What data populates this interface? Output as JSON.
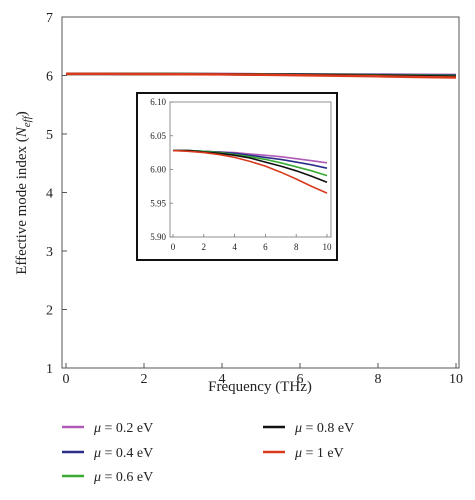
{
  "chart_data": {
    "type": "line",
    "xlabel": "Frequency (THz)",
    "ylabel": {
      "prefix": "Effective mode index (",
      "symbol": "N",
      "subscript": "eff",
      "suffix": ")"
    },
    "xlim": [
      0,
      10
    ],
    "ylim": [
      1,
      7
    ],
    "xticks": [
      "0",
      "2",
      "4",
      "6",
      "8",
      "10"
    ],
    "yticks": [
      "1",
      "2",
      "3",
      "4",
      "5",
      "6",
      "7"
    ],
    "grid": false,
    "legend_position": "bottom",
    "series": [
      {
        "name": "μ = 0.2 eV",
        "symbol": "μ",
        "value_text": "= 0.2 eV",
        "color": "#b05ab8",
        "x": [
          0,
          1,
          2,
          3,
          4,
          5,
          6,
          7,
          8,
          9,
          10
        ],
        "y": [
          6.028,
          6.028,
          6.027,
          6.026,
          6.025,
          6.023,
          6.021,
          6.019,
          6.016,
          6.013,
          6.01
        ]
      },
      {
        "name": "μ = 0.4 eV",
        "symbol": "μ",
        "value_text": "= 0.4 eV",
        "color": "#2b2f8a",
        "x": [
          0,
          1,
          2,
          3,
          4,
          5,
          6,
          7,
          8,
          9,
          10
        ],
        "y": [
          6.028,
          6.028,
          6.027,
          6.026,
          6.024,
          6.021,
          6.018,
          6.015,
          6.011,
          6.007,
          6.002
        ]
      },
      {
        "name": "μ = 0.6 eV",
        "symbol": "μ",
        "value_text": "= 0.6 eV",
        "color": "#3aaa35",
        "x": [
          0,
          1,
          2,
          3,
          4,
          5,
          6,
          7,
          8,
          9,
          10
        ],
        "y": [
          6.028,
          6.028,
          6.027,
          6.025,
          6.022,
          6.019,
          6.015,
          6.01,
          6.004,
          5.998,
          5.991
        ]
      },
      {
        "name": "μ = 0.8 eV",
        "symbol": "μ",
        "value_text": "= 0.8 eV",
        "color": "#111111",
        "x": [
          0,
          1,
          2,
          3,
          4,
          5,
          6,
          7,
          8,
          9,
          10
        ],
        "y": [
          6.028,
          6.028,
          6.026,
          6.024,
          6.021,
          6.017,
          6.011,
          6.005,
          5.998,
          5.99,
          5.981
        ]
      },
      {
        "name": "μ = 1 eV",
        "symbol": "μ",
        "value_text": "= 1 eV",
        "color": "#d93a1e",
        "x": [
          0,
          1,
          2,
          3,
          4,
          5,
          6,
          7,
          8,
          9,
          10
        ],
        "y": [
          6.028,
          6.027,
          6.025,
          6.022,
          6.018,
          6.012,
          6.005,
          5.996,
          5.986,
          5.975,
          5.965
        ]
      }
    ],
    "inset": {
      "xlim": [
        0,
        10
      ],
      "ylim": [
        5.9,
        6.1
      ],
      "xticks": [
        "0",
        "2",
        "4",
        "6",
        "8",
        "10"
      ],
      "yticks": [
        "6.10",
        "6.05",
        "6.00",
        "5.95",
        "5.90"
      ]
    }
  }
}
